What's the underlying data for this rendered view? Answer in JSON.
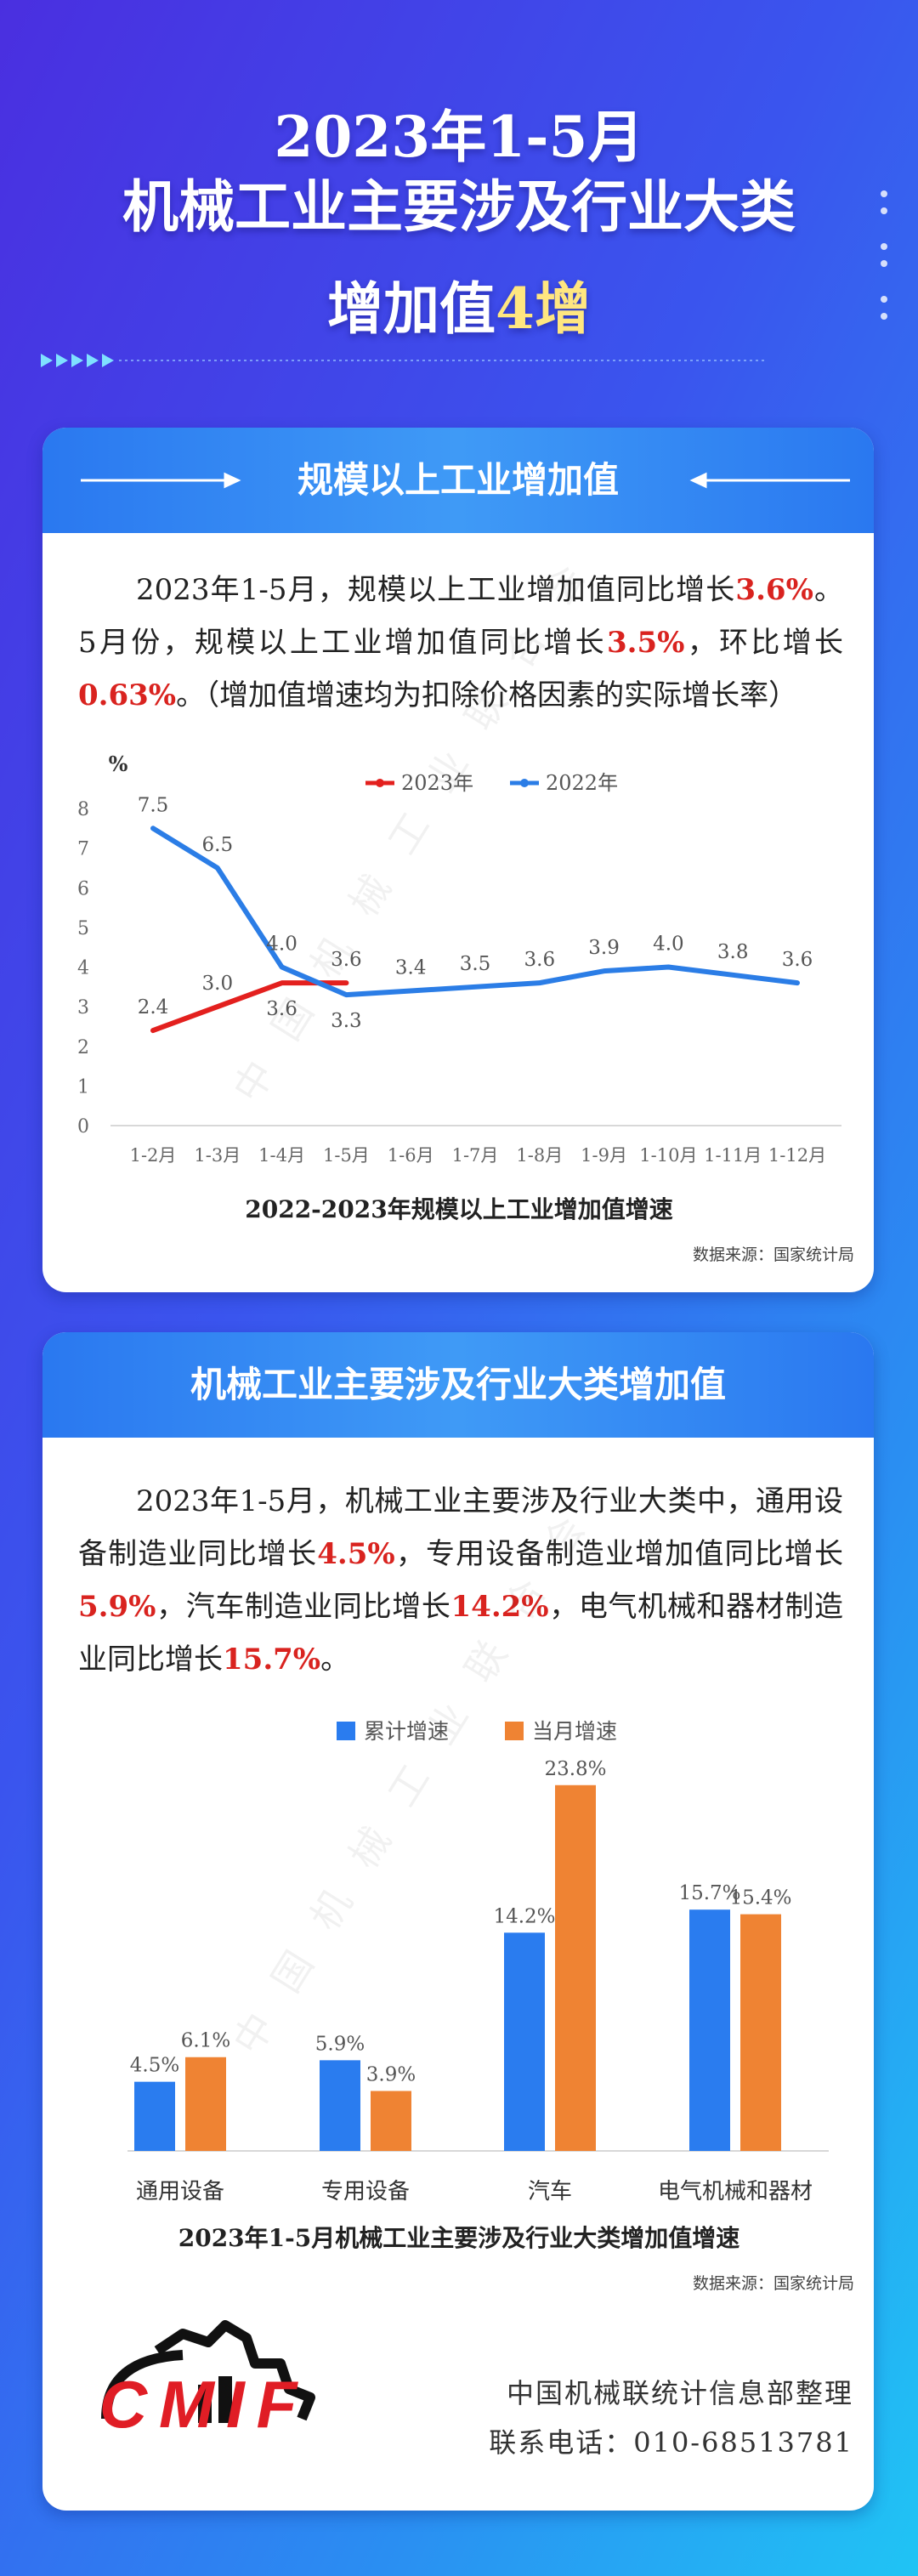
{
  "header": {
    "title_lines": [
      [
        {
          "text": "2023年1-5月"
        }
      ],
      [
        {
          "text": "机械工业主要涉及行业大类"
        }
      ],
      [
        {
          "text": "增加值"
        },
        {
          "text": "4增",
          "highlight": true
        }
      ]
    ]
  },
  "sections": [
    {
      "title": "规模以上工业增加值",
      "paragraph": [
        {
          "text": "2023年1-5月，规模以上工业增加值同比增长"
        },
        {
          "text": "3.6%",
          "highlight": true
        },
        {
          "text": "。5月份，规模以上工业增加值同比增长"
        },
        {
          "text": "3.5%",
          "highlight": true
        },
        {
          "text": "，环比增长"
        },
        {
          "text": "0.63%",
          "highlight": true
        },
        {
          "text": "。（增加值增速均为扣除价格因素的实际增长率）"
        }
      ]
    },
    {
      "title": "机械工业主要涉及行业大类增加值",
      "paragraph": [
        {
          "text": "2023年1-5月，机械工业主要涉及行业大类中，通用设备制造业同比增长"
        },
        {
          "text": "4.5%",
          "highlight": true
        },
        {
          "text": "，专用设备制造业增加值同比增长"
        },
        {
          "text": "5.9%",
          "highlight": true
        },
        {
          "text": "，汽车制造业同比增长"
        },
        {
          "text": "14.2%",
          "highlight": true
        },
        {
          "text": "，电气机械和器材制造业同比增长"
        },
        {
          "text": "15.7%",
          "highlight": true
        },
        {
          "text": "。"
        }
      ]
    }
  ],
  "chart_data": [
    {
      "type": "line",
      "title": "2022-2023年规模以上工业增加值增速",
      "y_unit": "%",
      "source": "数据来源：国家统计局",
      "categories": [
        "1-2月",
        "1-3月",
        "1-4月",
        "1-5月",
        "1-6月",
        "1-7月",
        "1-8月",
        "1-9月",
        "1-10月",
        "1-11月",
        "1-12月"
      ],
      "series": [
        {
          "name": "2023年",
          "color": "#e3201e",
          "values": [
            2.4,
            3.0,
            3.6,
            3.6,
            null,
            null,
            null,
            null,
            null,
            null,
            null
          ],
          "value_labels": [
            "2.4",
            "3.0",
            "3.6",
            "3.6",
            null,
            null,
            null,
            null,
            null,
            null,
            null
          ]
        },
        {
          "name": "2022年",
          "color": "#2b7de6",
          "values": [
            7.5,
            6.5,
            4.0,
            3.3,
            3.4,
            3.5,
            3.6,
            3.9,
            4.0,
            3.8,
            3.6
          ],
          "value_labels": [
            "7.5",
            "6.5",
            "4.0",
            "3.3",
            "3.4",
            "3.5",
            "3.6",
            "3.9",
            "4.0",
            "3.8",
            "3.6"
          ]
        }
      ],
      "ylim": [
        0,
        8
      ],
      "yticks": [
        0,
        1,
        2,
        3,
        4,
        5,
        6,
        7,
        8
      ],
      "grid": false,
      "legend": "top"
    },
    {
      "type": "bar",
      "title": "2023年1-5月机械工业主要涉及行业大类增加值增速",
      "source": "数据来源：国家统计局",
      "categories": [
        "通用设备",
        "专用设备",
        "汽车",
        "电气机械和器材"
      ],
      "series": [
        {
          "name": "累计增速",
          "color": "#2a7cef",
          "values": [
            4.5,
            5.9,
            14.2,
            15.7
          ],
          "value_labels": [
            "4.5%",
            "5.9%",
            "14.2%",
            "15.7%"
          ]
        },
        {
          "name": "当月增速",
          "color": "#ef8333",
          "values": [
            6.1,
            3.9,
            23.8,
            15.4
          ],
          "value_labels": [
            "6.1%",
            "3.9%",
            "23.8%",
            "15.4%"
          ]
        }
      ],
      "ylim": [
        0,
        26
      ],
      "grid": false,
      "legend": "top"
    }
  ],
  "watermark": "中国机械工业联合会",
  "footer": {
    "logo": "CMIF",
    "credit": "中国机械联统计信息部整理",
    "contact": "联系电话：010-68513781"
  }
}
